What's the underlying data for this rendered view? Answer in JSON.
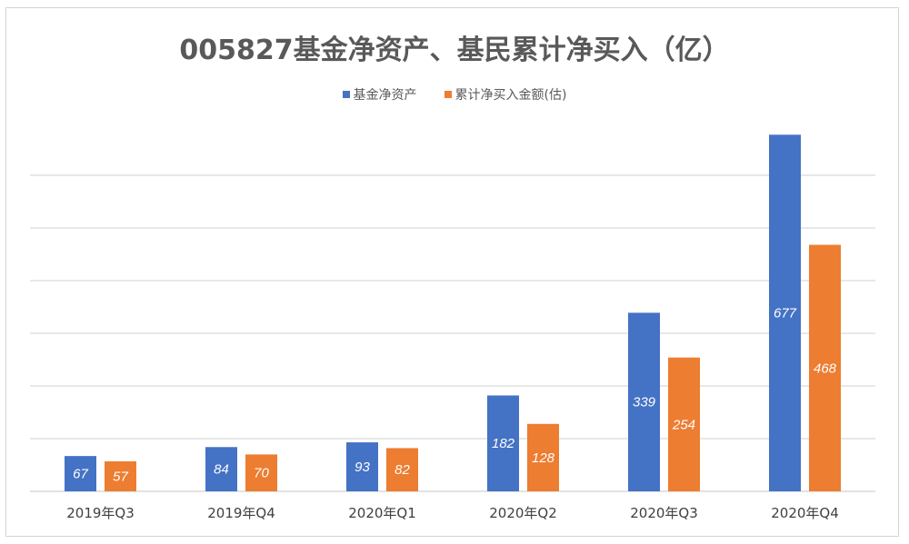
{
  "chart_data": {
    "type": "bar",
    "title": "005827基金净资产、基民累计净买入（亿）",
    "categories": [
      "2019年Q3",
      "2019年Q4",
      "2020年Q1",
      "2020年Q2",
      "2020年Q3",
      "2020年Q4"
    ],
    "series": [
      {
        "name": "基金净资产",
        "color": "#4472c4",
        "values": [
          67,
          84,
          93,
          182,
          339,
          677
        ]
      },
      {
        "name": "累计净买入金额(估)",
        "color": "#ed7d31",
        "values": [
          57,
          70,
          82,
          128,
          254,
          468
        ]
      }
    ],
    "ylim": [
      0,
      700
    ],
    "gridlines": [
      100,
      200,
      300,
      400,
      500,
      600
    ],
    "grid": true,
    "y_tick_labels_shown": false,
    "data_labels": "inside-center",
    "legend": "top"
  }
}
